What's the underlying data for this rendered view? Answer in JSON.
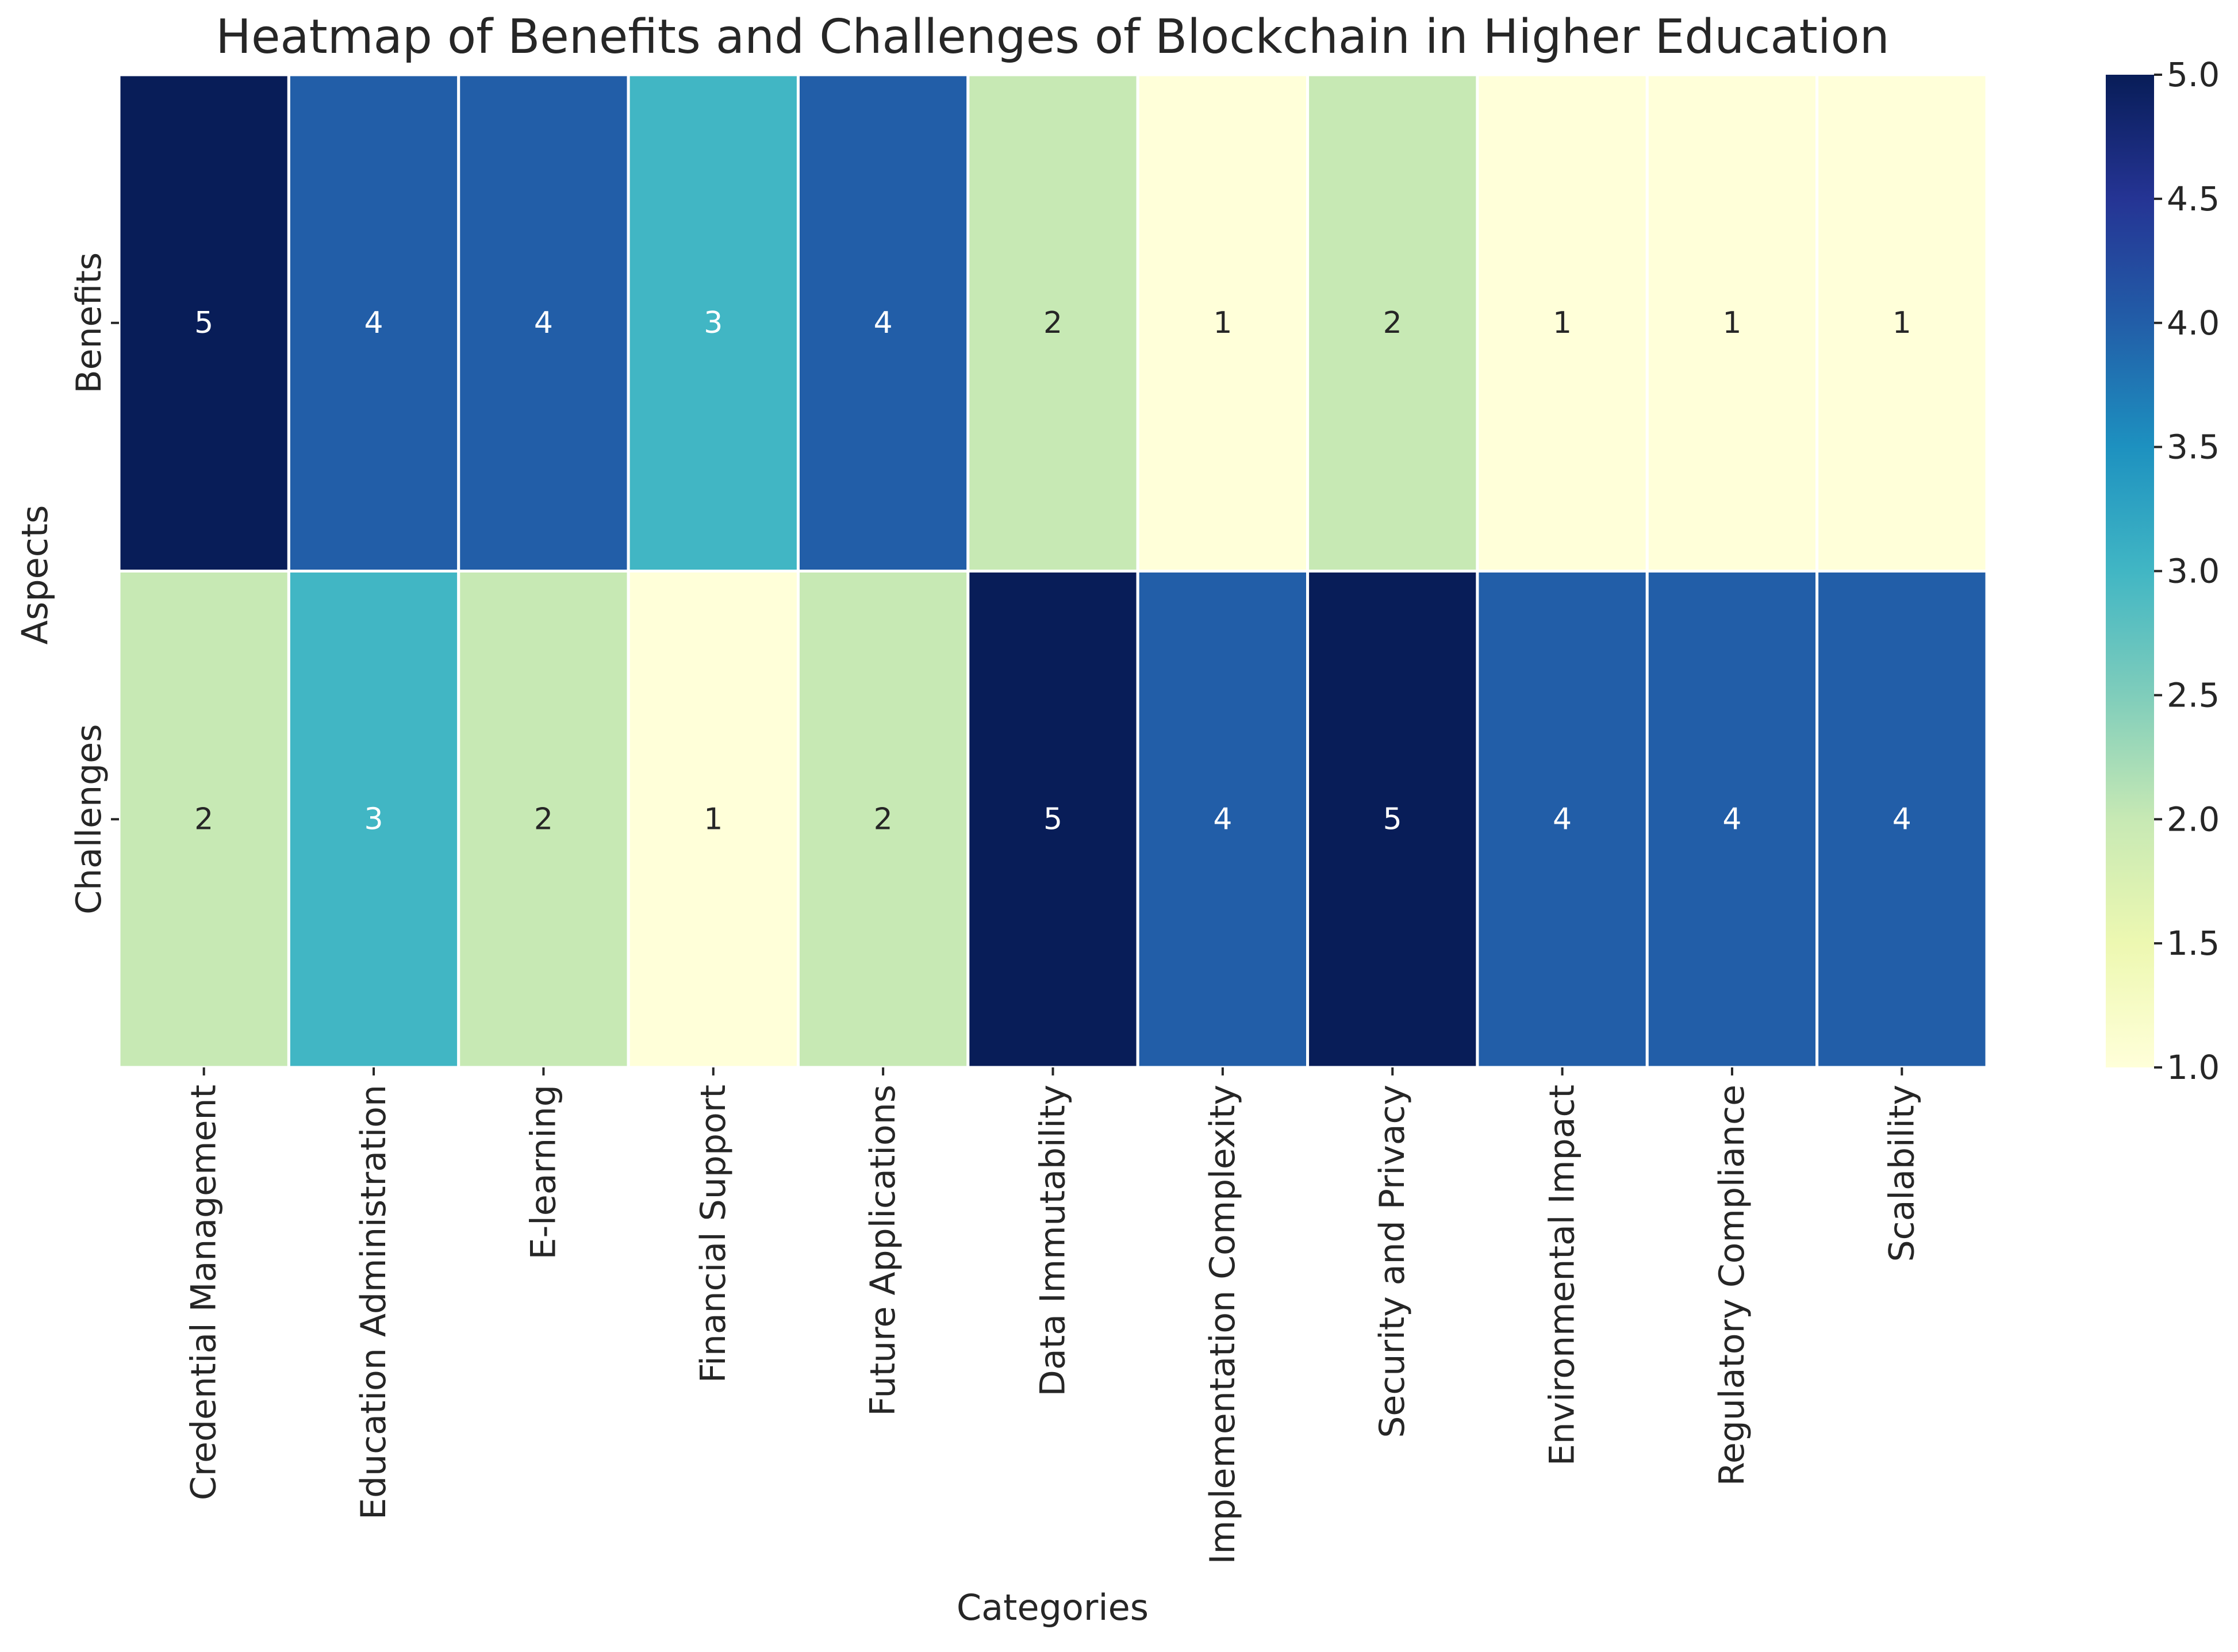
{
  "chart_data": {
    "type": "heatmap",
    "title": "Heatmap of Benefits and Challenges of Blockchain in Higher Education",
    "xlabel": "Categories",
    "ylabel": "Aspects",
    "columns": [
      "Credential Management",
      "Education Administration",
      "E-learning",
      "Financial Support",
      "Future Applications",
      "Data Immutability",
      "Implementation Complexity",
      "Security and Privacy",
      "Environmental Impact",
      "Regulatory Compliance",
      "Scalability"
    ],
    "rows": [
      "Benefits",
      "Challenges"
    ],
    "values": [
      [
        5,
        4,
        4,
        3,
        4,
        2,
        1,
        2,
        1,
        1,
        1
      ],
      [
        2,
        3,
        2,
        1,
        2,
        5,
        4,
        5,
        4,
        4,
        4
      ]
    ],
    "colorbar": {
      "min": 1.0,
      "max": 5.0,
      "ticks": [
        "1.0",
        "1.5",
        "2.0",
        "2.5",
        "3.0",
        "3.5",
        "4.0",
        "4.5",
        "5.0"
      ],
      "colormap": "YlGnBu",
      "stops": [
        "#ffffd9",
        "#edf8b1",
        "#c7e9b4",
        "#7fcdbb",
        "#41b6c4",
        "#1d91c0",
        "#225ea8",
        "#253494",
        "#081d58"
      ]
    },
    "cell_colors": {
      "1": "#ffffd9",
      "2": "#c7e9b4",
      "3": "#41b6c4",
      "4": "#225ea8",
      "5": "#081d58"
    },
    "grid": false
  }
}
